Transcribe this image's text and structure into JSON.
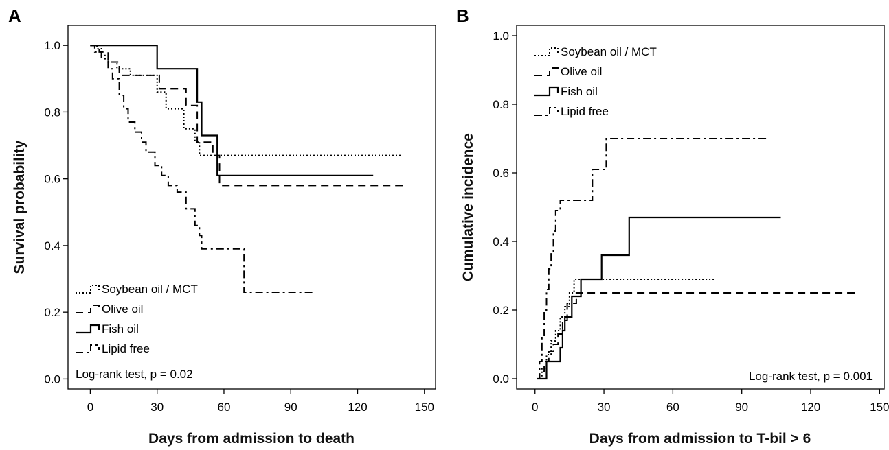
{
  "chart_data": [
    {
      "panel": "A",
      "type": "line",
      "step": "survival",
      "xlabel": "Days from admission to death",
      "ylabel": "Survival probability",
      "xlim": [
        -10,
        155
      ],
      "ylim": [
        -0.03,
        1.06
      ],
      "xticks": [
        0,
        30,
        60,
        90,
        120,
        150
      ],
      "yticks": [
        0.0,
        0.2,
        0.4,
        0.6,
        0.8,
        1.0
      ],
      "ytick_labels": [
        "0.0",
        "0.2",
        "0.4",
        "0.6",
        "0.8",
        "1.0"
      ],
      "legend_position": "bottom-left",
      "annotation": "Log-rank test, p = 0.02",
      "series": [
        {
          "name": "Soybean oil / MCT",
          "style": "dotted",
          "points": [
            [
              0,
              1.0
            ],
            [
              3,
              0.99
            ],
            [
              5,
              0.97
            ],
            [
              8,
              0.95
            ],
            [
              12,
              0.93
            ],
            [
              18,
              0.91
            ],
            [
              30,
              0.86
            ],
            [
              34,
              0.81
            ],
            [
              42,
              0.75
            ],
            [
              47,
              0.71
            ],
            [
              49,
              0.67
            ],
            [
              140,
              0.67
            ]
          ]
        },
        {
          "name": "Olive oil",
          "style": "dashed",
          "points": [
            [
              0,
              1.0
            ],
            [
              4,
              0.98
            ],
            [
              8,
              0.95
            ],
            [
              13,
              0.91
            ],
            [
              25,
              0.91
            ],
            [
              31,
              0.87
            ],
            [
              40,
              0.87
            ],
            [
              43,
              0.82
            ],
            [
              48,
              0.71
            ],
            [
              55,
              0.67
            ],
            [
              58,
              0.58
            ],
            [
              142,
              0.58
            ]
          ]
        },
        {
          "name": "Fish oil",
          "style": "solid",
          "points": [
            [
              0,
              1.0
            ],
            [
              30,
              1.0
            ],
            [
              30,
              0.93
            ],
            [
              47,
              0.93
            ],
            [
              48,
              0.83
            ],
            [
              50,
              0.73
            ],
            [
              56,
              0.73
            ],
            [
              57,
              0.61
            ],
            [
              127,
              0.61
            ]
          ]
        },
        {
          "name": "Lipid free",
          "style": "dashdot",
          "points": [
            [
              0,
              1.0
            ],
            [
              2,
              0.98
            ],
            [
              5,
              0.96
            ],
            [
              8,
              0.93
            ],
            [
              10,
              0.9
            ],
            [
              13,
              0.85
            ],
            [
              15,
              0.81
            ],
            [
              17,
              0.77
            ],
            [
              20,
              0.74
            ],
            [
              23,
              0.71
            ],
            [
              25,
              0.68
            ],
            [
              29,
              0.64
            ],
            [
              32,
              0.61
            ],
            [
              35,
              0.58
            ],
            [
              39,
              0.56
            ],
            [
              43,
              0.51
            ],
            [
              47,
              0.46
            ],
            [
              49,
              0.43
            ],
            [
              50,
              0.39
            ],
            [
              59,
              0.39
            ],
            [
              69,
              0.39
            ],
            [
              69,
              0.26
            ],
            [
              100,
              0.26
            ]
          ]
        }
      ]
    },
    {
      "panel": "B",
      "type": "line",
      "step": "incidence",
      "xlabel": "Days from admission to T-bil > 6",
      "ylabel": "Cumulative incidence",
      "xlim": [
        -8,
        152
      ],
      "ylim": [
        -0.03,
        1.03
      ],
      "xticks": [
        0,
        30,
        60,
        90,
        120,
        150
      ],
      "yticks": [
        0.0,
        0.2,
        0.4,
        0.6,
        0.8,
        1.0
      ],
      "ytick_labels": [
        "0.0",
        "0.2",
        "0.4",
        "0.6",
        "0.8",
        "1.0"
      ],
      "legend_position": "top-left",
      "annotation": "Log-rank test, p = 0.001",
      "series": [
        {
          "name": "Soybean oil / MCT",
          "style": "dotted",
          "points": [
            [
              1,
              0.0
            ],
            [
              3,
              0.03
            ],
            [
              5,
              0.07
            ],
            [
              7,
              0.11
            ],
            [
              9,
              0.14
            ],
            [
              11,
              0.18
            ],
            [
              13,
              0.21
            ],
            [
              15,
              0.25
            ],
            [
              17,
              0.29
            ],
            [
              78,
              0.29
            ]
          ]
        },
        {
          "name": "Olive oil",
          "style": "dashed",
          "points": [
            [
              1,
              0.0
            ],
            [
              2,
              0.02
            ],
            [
              4,
              0.05
            ],
            [
              6,
              0.08
            ],
            [
              8,
              0.1
            ],
            [
              10,
              0.13
            ],
            [
              12,
              0.17
            ],
            [
              14,
              0.22
            ],
            [
              18,
              0.25
            ],
            [
              140,
              0.25
            ]
          ]
        },
        {
          "name": "Fish oil",
          "style": "solid",
          "points": [
            [
              1,
              0.0
            ],
            [
              5,
              0.0
            ],
            [
              5,
              0.05
            ],
            [
              11,
              0.05
            ],
            [
              11,
              0.09
            ],
            [
              12,
              0.14
            ],
            [
              13,
              0.18
            ],
            [
              16,
              0.18
            ],
            [
              16,
              0.24
            ],
            [
              20,
              0.24
            ],
            [
              20,
              0.29
            ],
            [
              29,
              0.29
            ],
            [
              29,
              0.36
            ],
            [
              41,
              0.36
            ],
            [
              41,
              0.47
            ],
            [
              107,
              0.47
            ]
          ]
        },
        {
          "name": "Lipid free",
          "style": "dashdot",
          "points": [
            [
              1,
              0.0
            ],
            [
              2,
              0.05
            ],
            [
              3,
              0.12
            ],
            [
              4,
              0.2
            ],
            [
              5,
              0.26
            ],
            [
              6,
              0.32
            ],
            [
              7,
              0.37
            ],
            [
              8,
              0.43
            ],
            [
              9,
              0.49
            ],
            [
              11,
              0.52
            ],
            [
              14,
              0.52
            ],
            [
              22,
              0.52
            ],
            [
              25,
              0.61
            ],
            [
              28,
              0.61
            ],
            [
              31,
              0.7
            ],
            [
              102,
              0.7
            ]
          ]
        }
      ]
    }
  ]
}
